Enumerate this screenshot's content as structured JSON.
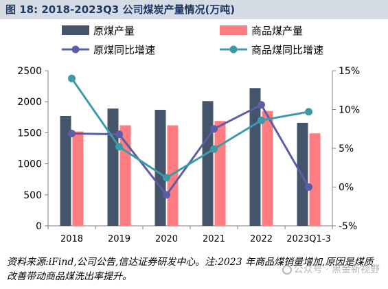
{
  "figure": {
    "title": "图 18:  2018-2023Q3 公司煤炭产量情况(万吨)"
  },
  "chart_data": {
    "type": "bar",
    "categories": [
      "2018",
      "2019",
      "2020",
      "2021",
      "2022",
      "2023Q1-3"
    ],
    "series": [
      {
        "name": "原煤产量",
        "kind": "bar",
        "axis": "left",
        "color": "#44546a",
        "values": [
          1770,
          1890,
          1870,
          2010,
          2220,
          1660
        ]
      },
      {
        "name": "商品煤产量",
        "kind": "bar",
        "axis": "left",
        "color": "#ff7c80",
        "values": [
          1520,
          1620,
          1620,
          1690,
          1850,
          1490
        ]
      },
      {
        "name": "原煤同比增速",
        "kind": "line",
        "axis": "right",
        "color": "#5b5ea6",
        "values": [
          6.9,
          6.8,
          -1.0,
          7.5,
          10.6,
          0.0
        ]
      },
      {
        "name": "商品煤同比增速",
        "kind": "line",
        "axis": "right",
        "color": "#3d9ba8",
        "values": [
          14.0,
          5.2,
          1.2,
          4.9,
          8.6,
          9.7
        ]
      }
    ],
    "left_axis": {
      "ylim": [
        0,
        2500
      ],
      "ticks": [
        "0",
        "500",
        "1000",
        "1500",
        "2000",
        "2500"
      ]
    },
    "right_axis": {
      "ylim": [
        -5,
        15
      ],
      "ticks": [
        "-5%",
        "0%",
        "5%",
        "10%",
        "15%"
      ]
    },
    "legend": {
      "position": "top",
      "columns": 2
    },
    "grid": false
  },
  "footer": {
    "note": "资料来源:iFind,公司公告,信达证券研发中心。注:2023 年商品煤销量增加,原因是煤质改善带动商品煤洗出率提升。",
    "watermark": "公众号 · 黑金新视野"
  }
}
